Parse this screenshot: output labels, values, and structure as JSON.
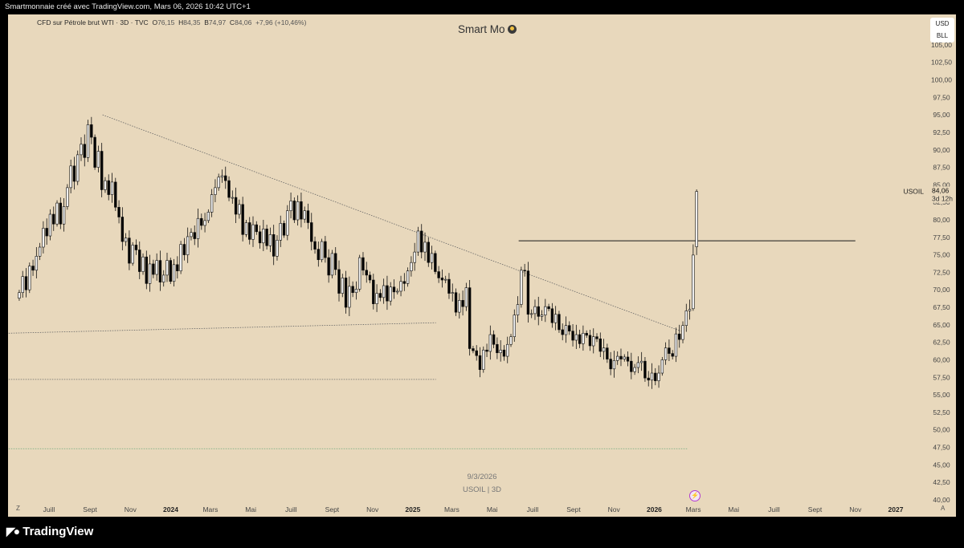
{
  "header": {
    "caption": "Smartmonnaie créé avec TradingView.com, Mars 06, 2026 10:42 UTC+1"
  },
  "symbol": {
    "name": "CFD sur Pétrole brut WTI · 3D · TVC",
    "o_label": "O",
    "o": "76,15",
    "h_label": "H",
    "h": "84,35",
    "b_label": "B",
    "b": "74,97",
    "c_label": "C",
    "c": "84,06",
    "change": "+7,96 (+10,46%)"
  },
  "watermark": {
    "title": "Smart Mo",
    "date": "9/3/2026",
    "symbol": "USOIL | 3D"
  },
  "units": {
    "currency": "USD",
    "unit": "BLL"
  },
  "price_label": {
    "symbol": "USOIL",
    "price": "84,06",
    "countdown": "3d 12h"
  },
  "controls": {
    "zoom": "Z",
    "auto": "A"
  },
  "footer": {
    "brand": "TradingView"
  },
  "colors": {
    "background": "#e8d8bc",
    "candle_up": "#f1f1f1",
    "candle_down": "#000000",
    "line": "#1a1a1a"
  },
  "chart_data": {
    "type": "candlestick",
    "timeframe": "3D",
    "x_ticks": [
      "Juill",
      "Sept",
      "Nov",
      "2024",
      "Mars",
      "Mai",
      "Juill",
      "Sept",
      "Nov",
      "2025",
      "Mars",
      "Mai",
      "Juill",
      "Sept",
      "Nov",
      "2026",
      "Mars",
      "Mai",
      "Juill",
      "Sept",
      "Nov",
      "2027"
    ],
    "x_ticks_bold": [
      "2024",
      "2025",
      "2026",
      "2027"
    ],
    "x_tick_dates": [
      "2023-07-01",
      "2023-09-01",
      "2023-11-01",
      "2024-01-01",
      "2024-03-01",
      "2024-05-01",
      "2024-07-01",
      "2024-09-01",
      "2024-11-01",
      "2025-01-01",
      "2025-03-01",
      "2025-05-01",
      "2025-07-01",
      "2025-09-01",
      "2025-11-01",
      "2026-01-01",
      "2026-03-01",
      "2026-05-01",
      "2026-07-01",
      "2026-09-01",
      "2026-11-01",
      "2027-01-01"
    ],
    "y_ticks": [
      "40,00",
      "42,50",
      "45,00",
      "47,50",
      "50,00",
      "52,50",
      "55,00",
      "57,50",
      "60,00",
      "62,50",
      "65,00",
      "67,50",
      "70,00",
      "72,50",
      "75,00",
      "77,50",
      "80,00",
      "82,50",
      "85,00",
      "87,50",
      "90,00",
      "92,50",
      "95,00",
      "97,50",
      "100,00",
      "102,50",
      "105,00"
    ],
    "ylim": [
      39.3,
      107.4
    ],
    "closes": [
      69.6,
      71.9,
      70.0,
      73.4,
      72.8,
      74.8,
      76.1,
      78.8,
      77.7,
      80.8,
      79.4,
      82.4,
      79.4,
      81.9,
      84.6,
      87.7,
      85.5,
      89.3,
      90.8,
      88.9,
      93.6,
      91.8,
      87.5,
      89.8,
      84.3,
      85.6,
      83.6,
      85.4,
      81.8,
      80.4,
      76.9,
      77.4,
      73.8,
      76.4,
      75.7,
      72.6,
      74.7,
      70.9,
      73.7,
      72.2,
      74.2,
      71.1,
      72.1,
      74.2,
      71.2,
      73.6,
      72.7,
      76.5,
      75.0,
      77.6,
      78.2,
      77.3,
      80.2,
      79.2,
      79.9,
      81.1,
      83.6,
      84.6,
      86.1,
      86.3,
      85.6,
      83.2,
      83.2,
      80.8,
      82.2,
      77.9,
      79.6,
      77.2,
      79.3,
      78.3,
      76.7,
      78.7,
      76.3,
      77.9,
      74.8,
      77.1,
      79.5,
      77.8,
      81.3,
      82.7,
      80.0,
      82.6,
      80.1,
      81.3,
      79.6,
      76.9,
      75.8,
      74.3,
      76.9,
      74.6,
      72.1,
      75.2,
      72.9,
      69.5,
      71.7,
      67.5,
      70.5,
      69.6,
      70.1,
      74.6,
      72.8,
      72.1,
      71.4,
      68.0,
      69.5,
      68.9,
      70.6,
      68.4,
      70.4,
      69.7,
      69.8,
      71.2,
      70.9,
      72.7,
      73.9,
      75.4,
      78.4,
      75.4,
      76.8,
      73.9,
      75.2,
      72.6,
      71.7,
      71.4,
      71.5,
      69.5,
      69.6,
      66.8,
      68.5,
      67.6,
      70.3,
      61.6,
      61.3,
      60.6,
      58.6,
      61.4,
      61.2,
      63.6,
      62.2,
      61.0,
      61.4,
      60.5,
      62.2,
      63.3,
      66.4,
      67.9,
      72.8,
      72.7,
      66.5,
      66.6,
      67.6,
      66.2,
      66.4,
      67.6,
      67.3,
      65.3,
      66.5,
      64.3,
      63.6,
      64.9,
      64.1,
      62.8,
      63.6,
      62.3,
      63.8,
      63.5,
      62.0,
      63.3,
      63.0,
      61.2,
      61.7,
      60.1,
      58.7,
      59.9,
      60.5,
      60.1,
      60.4,
      59.8,
      58.3,
      58.9,
      59.6,
      59.8,
      57.4,
      57.1,
      58.1,
      57.0,
      58.1,
      60.0,
      61.7,
      60.9,
      60.5,
      63.7,
      62.9,
      64.9,
      67.0,
      67.2,
      74.97,
      84.06
    ],
    "annotations": [
      {
        "type": "descending_trendline",
        "from": {
          "date": "2023-09-20",
          "price": 95.0
        },
        "to": {
          "date": "2026-02-10",
          "price": 64.1
        }
      },
      {
        "type": "dotted_support_line",
        "from": {
          "date": "2023-05-01",
          "price": 63.8
        },
        "to": {
          "date": "2025-02-05",
          "price": 65.3
        }
      },
      {
        "type": "dotted_horizontal_line",
        "price": 57.2,
        "from": "2023-05-01",
        "to": "2025-02-05"
      },
      {
        "type": "dotted_horizontal_line",
        "price": 47.3,
        "from": "2023-05-01",
        "to": "2026-02-20"
      },
      {
        "type": "horizontal_level",
        "price": 77.0,
        "from": "2025-06-10",
        "to": "2026-11-01"
      }
    ]
  }
}
